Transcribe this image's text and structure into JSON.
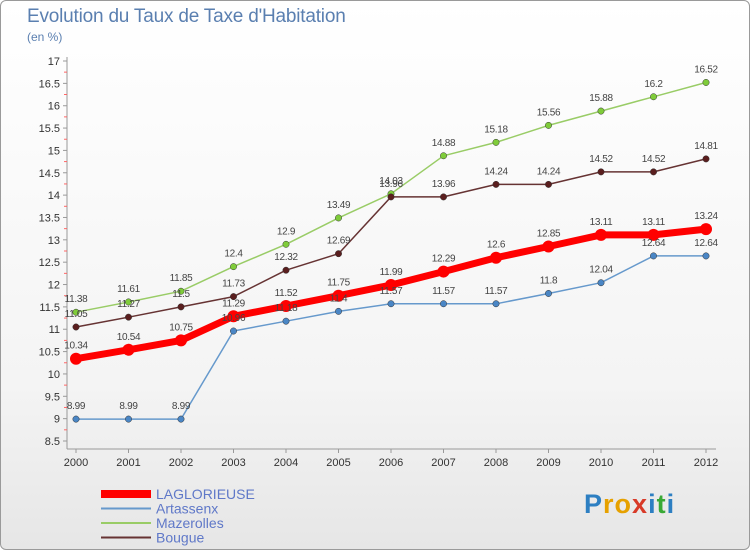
{
  "colors": {
    "series": [
      "#ff0000",
      "#6699cc",
      "#99cc66",
      "#663333"
    ],
    "markers": [
      "#ff0000",
      "#4a86c5",
      "#7fcc3a",
      "#5a1e1e"
    ],
    "axis": "#999999",
    "title": "#5a7fb0",
    "legend_text": "#5f78c8"
  },
  "brand": {
    "letters": [
      "P",
      "r",
      "o",
      "x",
      "i",
      "t",
      "i"
    ],
    "letter_colors": [
      "#2d7fc2",
      "#e6a100",
      "#e6a100",
      "#d83a28",
      "#2d7fc2",
      "#39a935",
      "#2d7fc2"
    ]
  },
  "chart_data": {
    "type": "line",
    "title": "Evolution du Taux de Taxe d'Habitation",
    "unit_label": "(en %)",
    "x": [
      "2000",
      "2001",
      "2002",
      "2003",
      "2004",
      "2005",
      "2006",
      "2007",
      "2008",
      "2009",
      "2010",
      "2011",
      "2012"
    ],
    "ylim": [
      8.5,
      17
    ],
    "yticks": [
      "8.5",
      "9",
      "9.5",
      "10",
      "10.5",
      "11",
      "11.5",
      "12",
      "12.5",
      "13",
      "13.5",
      "14",
      "14.5",
      "15",
      "15.5",
      "16",
      "16.5",
      "17"
    ],
    "grid": false,
    "legend_position": "bottom-left",
    "series": [
      {
        "name": "LAGLORIEUSE",
        "values": [
          10.34,
          10.54,
          10.75,
          11.29,
          11.52,
          11.75,
          11.99,
          12.29,
          12.6,
          12.85,
          13.11,
          13.11,
          13.24
        ],
        "labels": [
          "10.34",
          "10.54",
          "10.75",
          "11.29",
          "11.52",
          "11.75",
          "11.99",
          "12.29",
          "12.6",
          "12.85",
          "13.11",
          "13.11",
          "13.24"
        ]
      },
      {
        "name": "Artassenx",
        "values": [
          8.99,
          8.99,
          8.99,
          10.96,
          11.18,
          11.4,
          11.57,
          11.57,
          11.57,
          11.8,
          12.04,
          12.64,
          12.64
        ],
        "labels": [
          "8.99",
          "8.99",
          "8.99",
          "10.96",
          "11.18",
          "11.4",
          "11.57",
          "11.57",
          "11.57",
          "11.8",
          "12.04",
          "12.64",
          "12.64"
        ]
      },
      {
        "name": "Mazerolles",
        "values": [
          11.38,
          11.61,
          11.85,
          12.4,
          12.9,
          13.49,
          14.03,
          14.88,
          15.18,
          15.56,
          15.88,
          16.2,
          16.52
        ],
        "labels": [
          "11.38",
          "11.61",
          "11.85",
          "12.4",
          "12.9",
          "13.49",
          "14.03",
          "14.88",
          "15.18",
          "15.56",
          "15.88",
          "16.2",
          "16.52"
        ]
      },
      {
        "name": "Bougue",
        "values": [
          11.05,
          11.27,
          11.5,
          11.73,
          12.32,
          12.69,
          13.96,
          13.96,
          14.24,
          14.24,
          14.52,
          14.52,
          14.81
        ],
        "labels": [
          "11.05",
          "11.27",
          "11.5",
          "11.73",
          "12.32",
          "12.69",
          "13.96",
          "13.96",
          "14.24",
          "14.24",
          "14.52",
          "14.52",
          "14.81"
        ]
      }
    ]
  }
}
